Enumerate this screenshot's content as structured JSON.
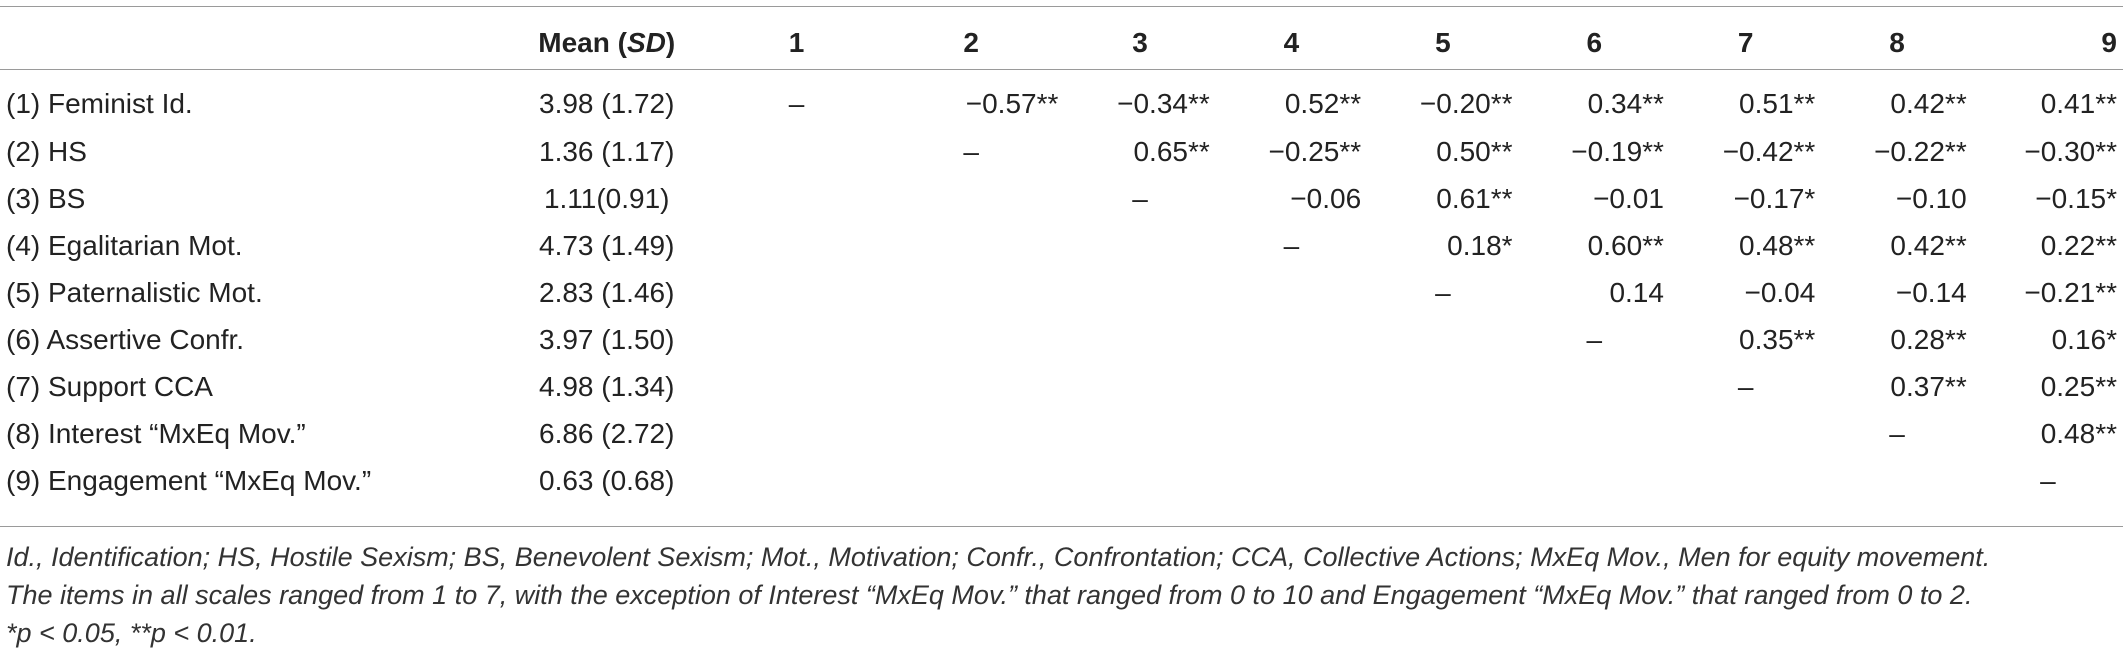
{
  "table": {
    "headers": [
      "",
      "Mean (SD)",
      "1",
      "2",
      "3",
      "4",
      "5",
      "6",
      "7",
      "8",
      "9"
    ],
    "mean_header": {
      "prefix": "Mean (",
      "italic": "SD",
      "suffix": ")"
    },
    "rows": [
      {
        "label": "(1) Feminist Id.",
        "mean": "3.98 (1.72)",
        "cells": [
          "–",
          "−0.57**",
          "−0.34**",
          "0.52**",
          "−0.20**",
          "0.34**",
          "0.51**",
          "0.42**",
          "0.41**"
        ]
      },
      {
        "label": "(2) HS",
        "mean": "1.36 (1.17)",
        "cells": [
          "",
          "–",
          "0.65**",
          "−0.25**",
          "0.50**",
          "−0.19**",
          "−0.42**",
          "−0.22**",
          "−0.30**"
        ]
      },
      {
        "label": "(3) BS",
        "mean": "1.11(0.91)",
        "cells": [
          "",
          "",
          "–",
          "−0.06",
          "0.61**",
          "−0.01",
          "−0.17*",
          "−0.10",
          "−0.15*"
        ]
      },
      {
        "label": "(4) Egalitarian Mot.",
        "mean": "4.73 (1.49)",
        "cells": [
          "",
          "",
          "",
          "–",
          "0.18*",
          "0.60**",
          "0.48**",
          "0.42**",
          "0.22**"
        ]
      },
      {
        "label": "(5) Paternalistic Mot.",
        "mean": "2.83 (1.46)",
        "cells": [
          "",
          "",
          "",
          "",
          "–",
          "0.14",
          "−0.04",
          "−0.14",
          "−0.21**"
        ]
      },
      {
        "label": "(6) Assertive Confr.",
        "mean": "3.97 (1.50)",
        "cells": [
          "",
          "",
          "",
          "",
          "",
          "–",
          "0.35**",
          "0.28**",
          "0.16*"
        ]
      },
      {
        "label": "(7) Support CCA",
        "mean": "4.98 (1.34)",
        "cells": [
          "",
          "",
          "",
          "",
          "",
          "",
          "–",
          "0.37**",
          "0.25**"
        ]
      },
      {
        "label": "(8) Interest “MxEq Mov.”",
        "mean": "6.86 (2.72)",
        "cells": [
          "",
          "",
          "",
          "",
          "",
          "",
          "",
          "–",
          "0.48**"
        ]
      },
      {
        "label": "(9) Engagement “MxEq Mov.”",
        "mean": "0.63 (0.68)",
        "cells": [
          "",
          "",
          "",
          "",
          "",
          "",
          "",
          "",
          "–"
        ]
      }
    ]
  },
  "notes": {
    "line1": "Id., Identification; HS, Hostile Sexism; BS, Benevolent Sexism; Mot., Motivation; Confr., Confrontation; CCA, Collective Actions; MxEq Mov., Men for equity movement.",
    "line2": "The items in all scales ranged from 1 to 7, with the exception of Interest “MxEq Mov.” that ranged from 0 to 10 and Engagement “MxEq Mov.” that ranged from 0 to 2.",
    "line3": "*p < 0.05, **p < 0.01."
  },
  "colors": {
    "rule": "#9a9a9a",
    "text": "#222222"
  }
}
